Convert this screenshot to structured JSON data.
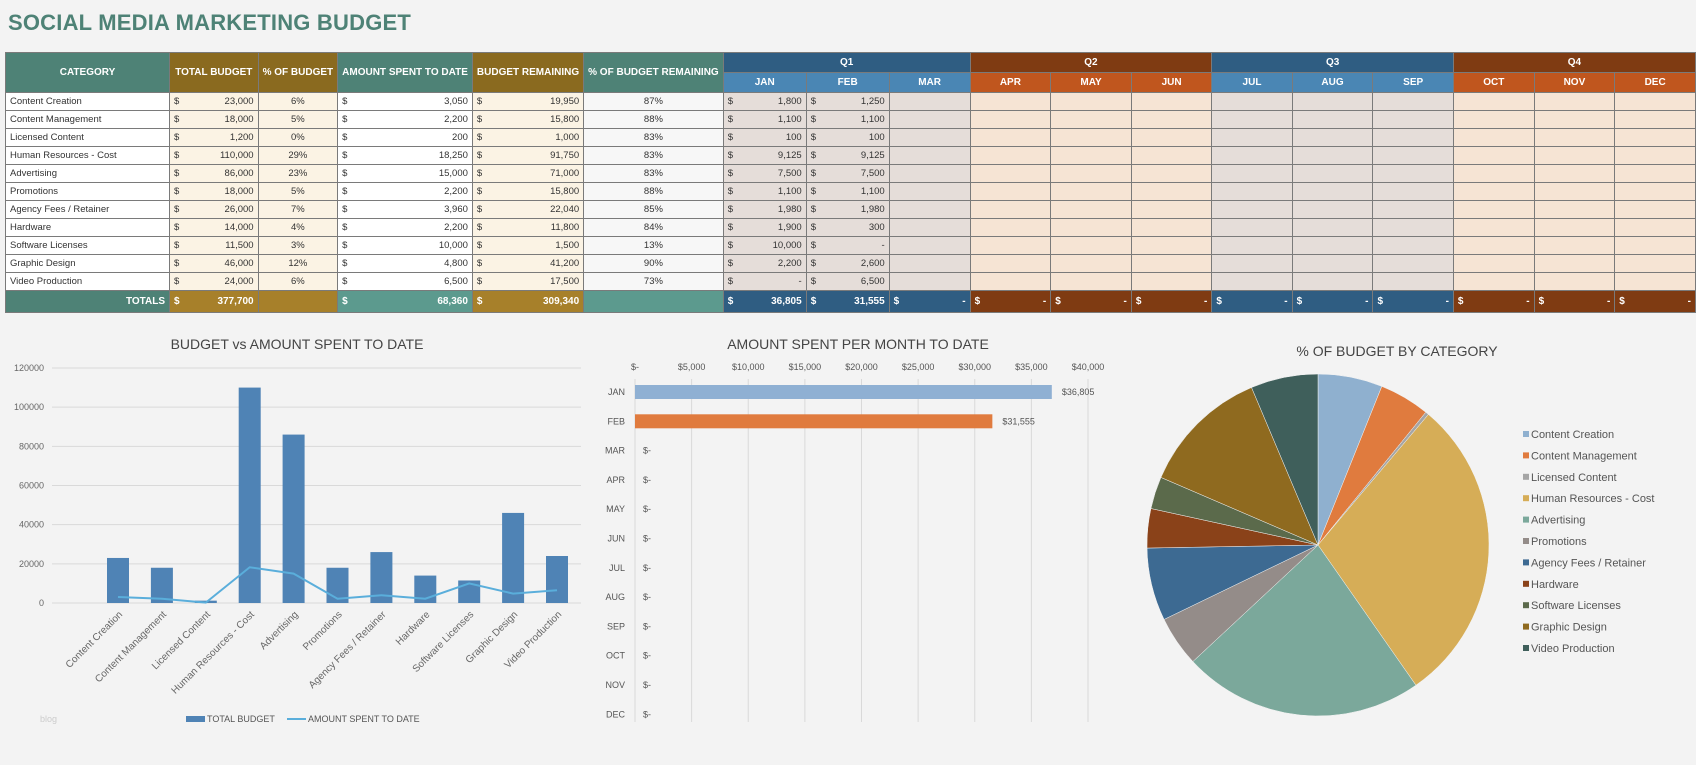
{
  "title": "SOCIAL MEDIA MARKETING BUDGET",
  "table": {
    "headers": {
      "category": "CATEGORY",
      "total_budget": "TOTAL BUDGET",
      "pct_budget": "% OF BUDGET",
      "amount_spent": "AMOUNT SPENT TO DATE",
      "budget_remaining": "BUDGET REMAINING",
      "pct_remaining": "% OF BUDGET REMAINING"
    },
    "currency_symbol": "$",
    "quarters": [
      {
        "label": "Q1",
        "months": [
          "JAN",
          "FEB",
          "MAR"
        ]
      },
      {
        "label": "Q2",
        "months": [
          "APR",
          "MAY",
          "JUN"
        ]
      },
      {
        "label": "Q3",
        "months": [
          "JUL",
          "AUG",
          "SEP"
        ]
      },
      {
        "label": "Q4",
        "months": [
          "OCT",
          "NOV",
          "DEC"
        ]
      }
    ],
    "rows": [
      {
        "category": "Content Creation",
        "total_budget": "23,000",
        "pct_budget": "6%",
        "amount_spent": "3,050",
        "budget_remaining": "19,950",
        "pct_remaining": "87%",
        "months": [
          "1,800",
          "1,250"
        ]
      },
      {
        "category": "Content Management",
        "total_budget": "18,000",
        "pct_budget": "5%",
        "amount_spent": "2,200",
        "budget_remaining": "15,800",
        "pct_remaining": "88%",
        "months": [
          "1,100",
          "1,100"
        ]
      },
      {
        "category": "Licensed Content",
        "total_budget": "1,200",
        "pct_budget": "0%",
        "amount_spent": "200",
        "budget_remaining": "1,000",
        "pct_remaining": "83%",
        "months": [
          "100",
          "100"
        ]
      },
      {
        "category": "Human Resources - Cost",
        "total_budget": "110,000",
        "pct_budget": "29%",
        "amount_spent": "18,250",
        "budget_remaining": "91,750",
        "pct_remaining": "83%",
        "months": [
          "9,125",
          "9,125"
        ]
      },
      {
        "category": "Advertising",
        "total_budget": "86,000",
        "pct_budget": "23%",
        "amount_spent": "15,000",
        "budget_remaining": "71,000",
        "pct_remaining": "83%",
        "months": [
          "7,500",
          "7,500"
        ]
      },
      {
        "category": "Promotions",
        "total_budget": "18,000",
        "pct_budget": "5%",
        "amount_spent": "2,200",
        "budget_remaining": "15,800",
        "pct_remaining": "88%",
        "months": [
          "1,100",
          "1,100"
        ]
      },
      {
        "category": "Agency Fees / Retainer",
        "total_budget": "26,000",
        "pct_budget": "7%",
        "amount_spent": "3,960",
        "budget_remaining": "22,040",
        "pct_remaining": "85%",
        "months": [
          "1,980",
          "1,980"
        ]
      },
      {
        "category": "Hardware",
        "total_budget": "14,000",
        "pct_budget": "4%",
        "amount_spent": "2,200",
        "budget_remaining": "11,800",
        "pct_remaining": "84%",
        "months": [
          "1,900",
          "300"
        ]
      },
      {
        "category": "Software Licenses",
        "total_budget": "11,500",
        "pct_budget": "3%",
        "amount_spent": "10,000",
        "budget_remaining": "1,500",
        "pct_remaining": "13%",
        "months": [
          "10,000",
          "-"
        ]
      },
      {
        "category": "Graphic Design",
        "total_budget": "46,000",
        "pct_budget": "12%",
        "amount_spent": "4,800",
        "budget_remaining": "41,200",
        "pct_remaining": "90%",
        "months": [
          "2,200",
          "2,600"
        ]
      },
      {
        "category": "Video Production",
        "total_budget": "24,000",
        "pct_budget": "6%",
        "amount_spent": "6,500",
        "budget_remaining": "17,500",
        "pct_remaining": "73%",
        "months": [
          "-",
          "6,500"
        ]
      }
    ],
    "totals": {
      "label": "TOTALS",
      "total_budget": "377,700",
      "amount_spent": "68,360",
      "budget_remaining": "309,340",
      "months": [
        "36,805",
        "31,555",
        "-",
        "-",
        "-",
        "-",
        "-",
        "-",
        "-",
        "-",
        "-",
        "-"
      ]
    }
  },
  "watermark": "blog",
  "chart_data": [
    {
      "type": "bar",
      "title": "BUDGET vs AMOUNT SPENT TO DATE",
      "categories": [
        "Content Creation",
        "Content Management",
        "Licensed Content",
        "Human Resources - Cost",
        "Advertising",
        "Promotions",
        "Agency Fees / Retainer",
        "Hardware",
        "Software Licenses",
        "Graphic Design",
        "Video Production"
      ],
      "series": [
        {
          "name": "TOTAL BUDGET",
          "kind": "bar",
          "color": "#4f83b5",
          "values": [
            23000,
            18000,
            1200,
            110000,
            86000,
            18000,
            26000,
            14000,
            11500,
            46000,
            24000
          ]
        },
        {
          "name": "AMOUNT SPENT TO DATE",
          "kind": "line",
          "color": "#5aaedb",
          "values": [
            3050,
            2200,
            200,
            18250,
            15000,
            2200,
            3960,
            2200,
            10000,
            4800,
            6500
          ]
        }
      ],
      "ylim": [
        0,
        120000
      ],
      "yticks": [
        "0",
        "20000",
        "40000",
        "60000",
        "80000",
        "100000",
        "120000"
      ],
      "grid": true,
      "legend": "bottom"
    },
    {
      "type": "bar",
      "orientation": "horizontal",
      "title": "AMOUNT SPENT PER MONTH TO DATE",
      "categories": [
        "JAN",
        "FEB",
        "MAR",
        "APR",
        "MAY",
        "JUN",
        "JUL",
        "AUG",
        "SEP",
        "OCT",
        "NOV",
        "DEC"
      ],
      "values": [
        36805,
        31555,
        0,
        0,
        0,
        0,
        0,
        0,
        0,
        0,
        0,
        0
      ],
      "data_labels": [
        "$36,805",
        "$31,555",
        "$-",
        "$-",
        "$-",
        "$-",
        "$-",
        "$-",
        "$-",
        "$-",
        "$-",
        "$-"
      ],
      "colors": [
        "#8fb0d3",
        "#e07b3e"
      ],
      "xlim": [
        0,
        40000
      ],
      "xticks": [
        "$-",
        "$5,000",
        "$10,000",
        "$15,000",
        "$20,000",
        "$25,000",
        "$30,000",
        "$35,000",
        "$40,000"
      ],
      "grid": true
    },
    {
      "type": "pie",
      "title": "% OF BUDGET BY CATEGORY",
      "labels": [
        "Content Creation",
        "Content Management",
        "Licensed Content",
        "Human Resources - Cost",
        "Advertising",
        "Promotions",
        "Agency Fees / Retainer",
        "Hardware",
        "Software Licenses",
        "Graphic Design",
        "Video Production"
      ],
      "values": [
        23000,
        18000,
        1200,
        110000,
        86000,
        18000,
        26000,
        14000,
        11500,
        46000,
        24000
      ],
      "colors": [
        "#8fb0cf",
        "#e07b3e",
        "#a5a5a5",
        "#d6ad57",
        "#7ba89b",
        "#948c89",
        "#3d6a92",
        "#8a4219",
        "#5b6a4b",
        "#8f6a1f",
        "#3f5f5b"
      ],
      "legend": "right"
    }
  ]
}
